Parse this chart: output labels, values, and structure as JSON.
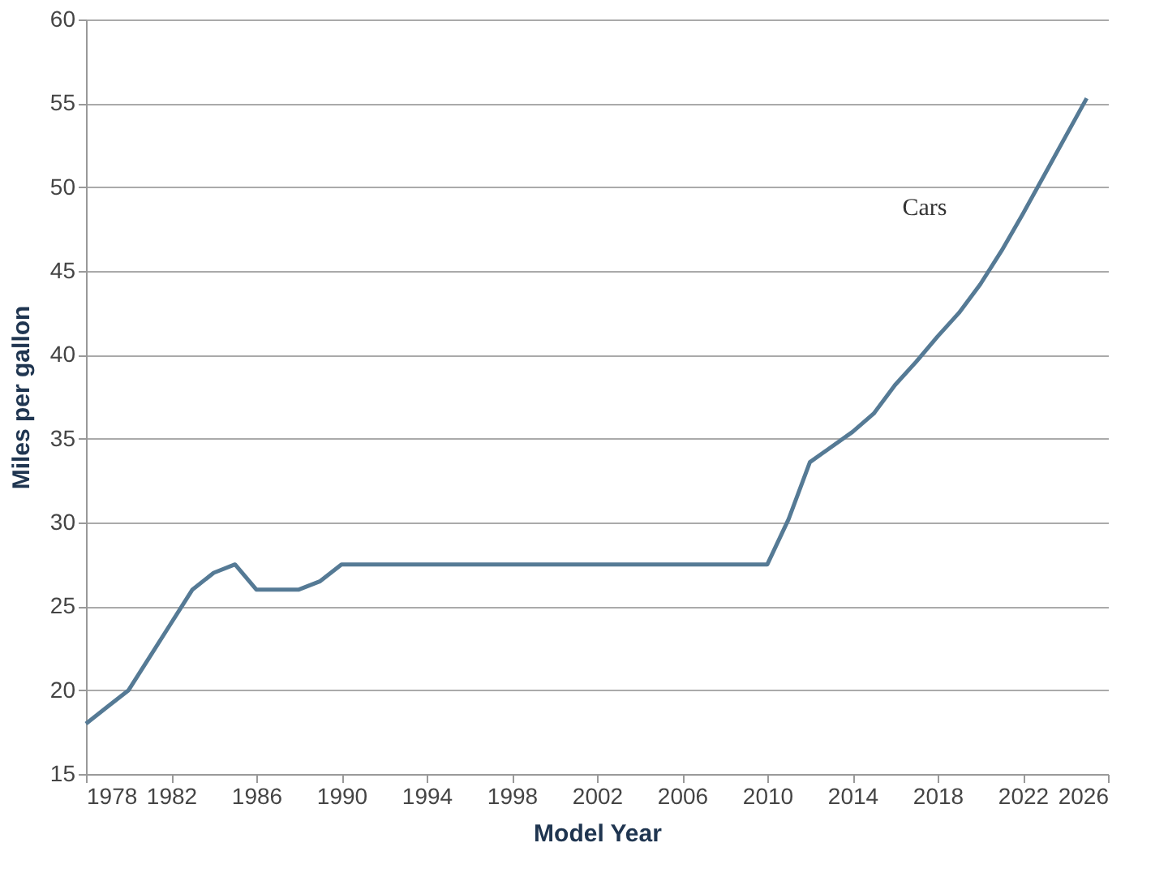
{
  "chart_data": {
    "type": "line",
    "xlabel": "Model Year",
    "ylabel": "Miles per gallon",
    "x": [
      1978,
      1979,
      1980,
      1981,
      1982,
      1983,
      1984,
      1985,
      1986,
      1987,
      1988,
      1989,
      1990,
      1991,
      1992,
      1993,
      1994,
      1995,
      1996,
      1997,
      1998,
      1999,
      2000,
      2001,
      2002,
      2003,
      2004,
      2005,
      2006,
      2007,
      2008,
      2009,
      2010,
      2011,
      2012,
      2013,
      2014,
      2015,
      2016,
      2017,
      2018,
      2019,
      2020,
      2021,
      2022,
      2023,
      2024,
      2025
    ],
    "series": [
      {
        "name": "Cars",
        "color": "#557a95",
        "values": [
          18.0,
          19.0,
          20.0,
          22.0,
          24.0,
          26.0,
          27.0,
          27.5,
          26.0,
          26.0,
          26.0,
          26.5,
          27.5,
          27.5,
          27.5,
          27.5,
          27.5,
          27.5,
          27.5,
          27.5,
          27.5,
          27.5,
          27.5,
          27.5,
          27.5,
          27.5,
          27.5,
          27.5,
          27.5,
          27.5,
          27.5,
          27.5,
          27.5,
          30.2,
          33.6,
          34.5,
          35.4,
          36.5,
          38.2,
          39.6,
          41.1,
          42.5,
          44.2,
          46.2,
          48.4,
          50.7,
          53.0,
          55.3
        ]
      }
    ],
    "xlim": [
      1978,
      2026
    ],
    "xticks": [
      1978,
      1982,
      1986,
      1990,
      1994,
      1998,
      2002,
      2006,
      2010,
      2014,
      2018,
      2022,
      2026
    ],
    "ylim": [
      15,
      60
    ],
    "yticks": [
      15,
      20,
      25,
      30,
      35,
      40,
      45,
      50,
      55,
      60
    ],
    "grid": "y",
    "marker": "none",
    "line_style": "solid"
  }
}
